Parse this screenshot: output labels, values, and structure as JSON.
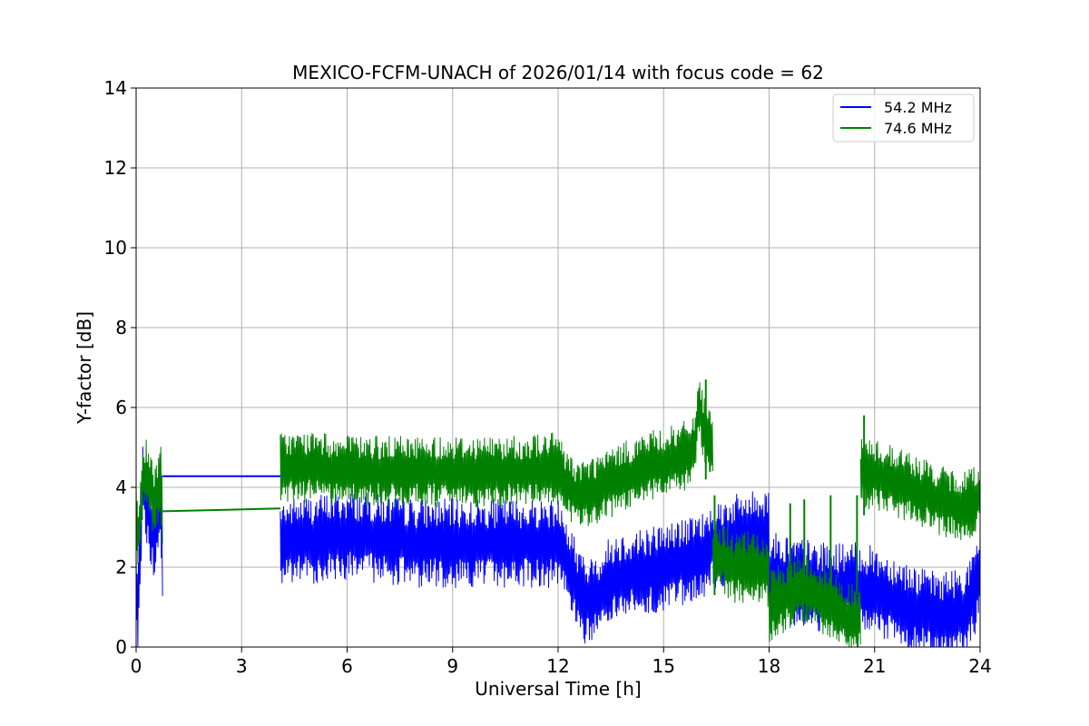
{
  "chart_data": {
    "type": "line",
    "title": "MEXICO-FCFM-UNACH of 2026/01/14 with focus code = 62",
    "xlabel": "Universal Time [h]",
    "ylabel": "Y-factor [dB]",
    "xlim": [
      0,
      24
    ],
    "ylim": [
      0,
      14
    ],
    "xticks": [
      0,
      3,
      6,
      9,
      12,
      15,
      18,
      21,
      24
    ],
    "yticks": [
      0,
      2,
      4,
      6,
      8,
      10,
      12,
      14
    ],
    "grid": true,
    "legend_position": "top-right",
    "series": [
      {
        "name": "54.2 MHz",
        "color": "#0000ff",
        "segments": [
          {
            "x": [
              0.0,
              0.05,
              0.1,
              0.15,
              0.2,
              0.3,
              0.4,
              0.5,
              0.6,
              0.7,
              0.75
            ],
            "y": [
              1.5,
              0.8,
              2.4,
              3.4,
              4.0,
              3.6,
              3.2,
              2.7,
              3.3,
              3.6,
              2.0
            ]
          },
          {
            "x": [
              0.75,
              4.1
            ],
            "y": [
              4.28,
              4.28
            ]
          },
          {
            "x": [
              4.1,
              5,
              6,
              7,
              8,
              9,
              10,
              11,
              11.8,
              12.1
            ],
            "y": [
              2.6,
              2.7,
              2.8,
              2.7,
              2.6,
              2.6,
              2.6,
              2.6,
              2.6,
              2.6
            ]
          },
          {
            "x": [
              12.1,
              12.3,
              12.5,
              12.7,
              12.9,
              13.2,
              13.5,
              14.0,
              14.5,
              15.0,
              15.5,
              16.0,
              16.3
            ],
            "y": [
              2.4,
              2.0,
              1.6,
              1.2,
              1.1,
              1.3,
              1.7,
              1.8,
              1.9,
              2.0,
              2.1,
              2.2,
              2.4
            ]
          },
          {
            "x": [
              16.3,
              16.6,
              17.0,
              17.5,
              18.0
            ],
            "y": [
              2.5,
              2.6,
              2.7,
              2.8,
              2.9
            ]
          },
          {
            "x": [
              18.0,
              18.5,
              19.0,
              19.5,
              20.0,
              20.5,
              21.0,
              21.5,
              22.0,
              22.5,
              23.0,
              23.5,
              23.8,
              24.0
            ],
            "y": [
              1.8,
              1.7,
              1.6,
              1.5,
              1.5,
              1.5,
              1.4,
              1.2,
              1.0,
              0.8,
              0.8,
              0.9,
              1.2,
              2.0
            ]
          }
        ]
      },
      {
        "name": "74.6 MHz",
        "color": "#008000",
        "segments": [
          {
            "x": [
              0.0,
              0.05,
              0.1,
              0.15,
              0.2,
              0.3,
              0.4,
              0.5,
              0.6,
              0.7,
              0.75
            ],
            "y": [
              3.5,
              2.8,
              3.2,
              3.6,
              4.2,
              4.4,
              4.0,
              3.6,
              3.9,
              4.2,
              3.4
            ]
          },
          {
            "x": [
              0.75,
              4.1
            ],
            "y": [
              3.4,
              3.47
            ]
          },
          {
            "x": [
              4.1,
              5,
              6,
              7,
              8,
              9,
              10,
              11,
              11.8,
              12.1
            ],
            "y": [
              4.5,
              4.5,
              4.4,
              4.4,
              4.4,
              4.4,
              4.4,
              4.4,
              4.5,
              4.4
            ]
          },
          {
            "x": [
              12.1,
              12.5,
              13.0,
              13.5,
              14.0,
              14.5,
              15.0,
              15.5,
              15.9,
              16.0,
              16.1,
              16.2,
              16.4
            ],
            "y": [
              4.2,
              3.8,
              3.9,
              4.1,
              4.3,
              4.5,
              4.6,
              4.7,
              5.0,
              6.2,
              5.5,
              5.3,
              4.8
            ]
          },
          {
            "x": [
              16.4,
              16.7,
              17.0,
              17.5,
              18.0
            ],
            "y": [
              2.4,
              2.2,
              2.0,
              2.0,
              1.9
            ]
          },
          {
            "x": [
              18.0,
              18.5,
              19.0,
              19.5,
              20.0,
              20.5,
              20.6
            ],
            "y": [
              1.0,
              1.3,
              1.5,
              1.2,
              0.9,
              0.6,
              0.7
            ]
          },
          {
            "x": [
              20.6,
              21.0,
              21.5,
              22.0,
              22.5,
              23.0,
              23.5,
              24.0
            ],
            "y": [
              4.4,
              4.3,
              4.2,
              4.0,
              3.8,
              3.6,
              3.5,
              3.8
            ]
          }
        ],
        "spikes": [
          {
            "x": 16.2,
            "y": 6.7
          },
          {
            "x": 16.45,
            "y": 3.8
          },
          {
            "x": 18.6,
            "y": 3.6
          },
          {
            "x": 19.0,
            "y": 3.7
          },
          {
            "x": 19.75,
            "y": 3.8
          },
          {
            "x": 20.5,
            "y": 3.8
          },
          {
            "x": 20.7,
            "y": 5.8
          }
        ]
      }
    ]
  }
}
